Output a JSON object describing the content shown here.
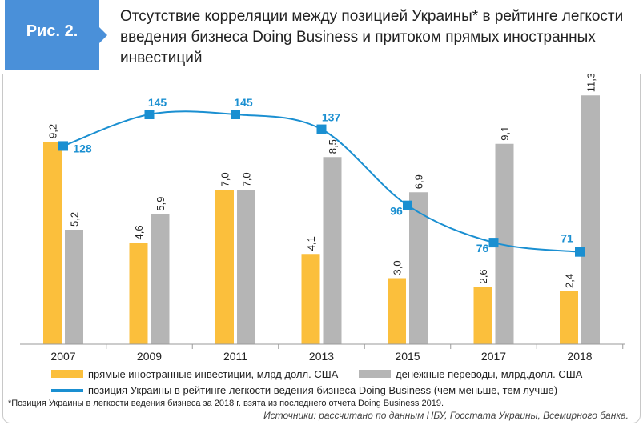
{
  "figure": {
    "label": "Рис. 2.",
    "title": "Отсутствие корреляции между позицией Украины* в рейтинге легкости введения бизнеса Doing Business и притоком прямых иностранных инвестиций"
  },
  "colors": {
    "fdi": "#fbbf3c",
    "remit": "#b5b5b5",
    "rank": "#1a8fd1",
    "badge": "#4a90d9"
  },
  "chart_data": {
    "type": "bar",
    "categories": [
      "2007",
      "2009",
      "2011",
      "2013",
      "2015",
      "2017",
      "2018"
    ],
    "series": [
      {
        "name": "прямые иностранные инвестиции, млрд долл. США",
        "values": [
          9.2,
          4.6,
          7.0,
          4.1,
          3.0,
          2.6,
          2.4
        ],
        "labels": [
          "9,2",
          "4,6",
          "7,0",
          "4,1",
          "3,0",
          "2,6",
          "2,4"
        ]
      },
      {
        "name": "денежные переводы, млрд.долл. США",
        "values": [
          5.2,
          5.9,
          7.0,
          8.5,
          6.9,
          9.1,
          11.3
        ],
        "labels": [
          "5,2",
          "5,9",
          "7,0",
          "8,5",
          "6,9",
          "9,1",
          "11,3"
        ]
      },
      {
        "name": "позиция Украины в рейтинге легкости ведения бизнеса Doing Business (чем меньше, тем лучше)",
        "type": "line",
        "values": [
          128,
          145,
          145,
          137,
          96,
          76,
          71
        ],
        "labels": [
          "128",
          "145",
          "145",
          "137",
          "96",
          "76",
          "71"
        ]
      }
    ]
  },
  "footnote": "*Позиция Украины в легкости ведения бизнеса за 2018 г. взята из последнего отчета Doing Business 2019.",
  "source": "Источники: рассчитано по данным НБУ, Госстата Украины, Всемирного банка."
}
